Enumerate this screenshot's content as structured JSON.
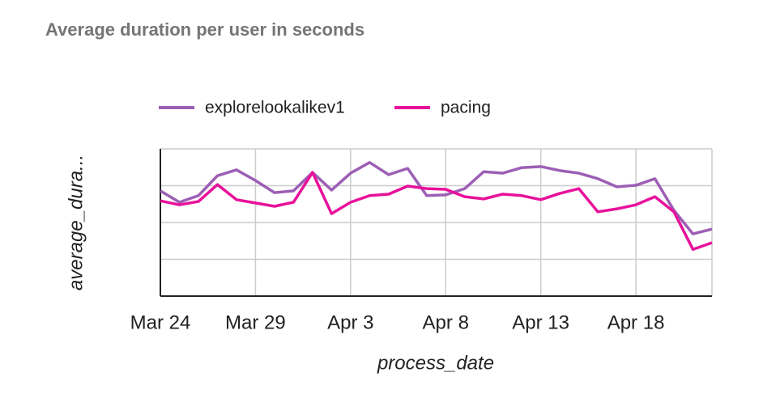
{
  "chart_data": {
    "type": "line",
    "title": "Average duration per user  in seconds",
    "x_label": "process_date",
    "y_label": "average_dura...",
    "categories": [
      "Mar 24",
      null,
      null,
      null,
      null,
      "Mar 29",
      null,
      null,
      null,
      null,
      "Apr 3",
      null,
      null,
      null,
      null,
      "Apr 8",
      null,
      null,
      null,
      null,
      "Apr 13",
      null,
      null,
      null,
      null,
      "Apr 18",
      null,
      null,
      null,
      null
    ],
    "series": [
      {
        "name": "explorelookalikev1",
        "color": "#9c5fb5",
        "values": [
          2.86,
          2.55,
          2.73,
          3.27,
          3.43,
          3.14,
          2.81,
          2.86,
          3.36,
          2.88,
          3.34,
          3.63,
          3.3,
          3.47,
          2.73,
          2.75,
          2.92,
          3.38,
          3.34,
          3.49,
          3.52,
          3.41,
          3.34,
          3.19,
          2.97,
          3.01,
          3.19,
          2.33,
          1.69,
          1.82
        ]
      },
      {
        "name": "pacing",
        "color": "#e8119b",
        "values": [
          2.59,
          2.48,
          2.57,
          3.03,
          2.62,
          2.53,
          2.44,
          2.55,
          3.36,
          2.24,
          2.55,
          2.73,
          2.77,
          2.99,
          2.92,
          2.9,
          2.7,
          2.64,
          2.77,
          2.73,
          2.62,
          2.79,
          2.92,
          2.29,
          2.37,
          2.48,
          2.7,
          2.29,
          1.27,
          1.45
        ]
      }
    ],
    "ylim": [
      0,
      4
    ],
    "yticks": [
      0,
      1,
      2,
      3,
      4
    ],
    "grid": true,
    "legend": "top"
  }
}
